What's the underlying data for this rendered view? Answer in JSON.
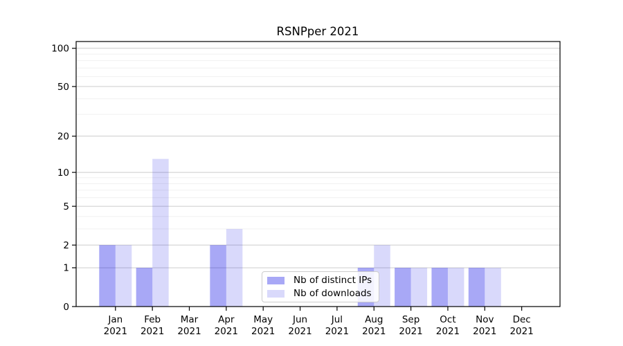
{
  "chart_data": {
    "type": "bar",
    "title": "RSNPper 2021",
    "categories": [
      "Jan 2021",
      "Feb 2021",
      "Mar 2021",
      "Apr 2021",
      "May 2021",
      "Jun 2021",
      "Jul 2021",
      "Aug 2021",
      "Sep 2021",
      "Oct 2021",
      "Nov 2021",
      "Dec 2021"
    ],
    "series": [
      {
        "name": "Nb of distinct IPs",
        "color": "rgba(0,0,230,0.34)",
        "values": [
          2,
          1,
          0,
          2,
          0,
          0,
          0,
          1,
          1,
          1,
          1,
          0
        ]
      },
      {
        "name": "Nb of downloads",
        "color": "rgba(0,0,230,0.15)",
        "values": [
          2,
          13,
          0,
          3,
          0,
          0,
          0,
          2,
          1,
          1,
          1,
          0
        ]
      }
    ],
    "y_axis": {
      "scale": "log1p",
      "ticks": [
        0,
        1,
        2,
        5,
        10,
        20,
        50,
        100
      ],
      "minor_ticks": [
        3,
        4,
        6,
        7,
        8,
        9,
        30,
        40,
        60,
        70,
        80,
        90
      ],
      "range": [
        0,
        112
      ]
    },
    "x_axis": {
      "label_lines": 2
    },
    "grid": {
      "horizontal": true,
      "major_color": "#cccccc",
      "minor_color": "#f0f0f0"
    },
    "axis_color": "#000000",
    "background": "#ffffff",
    "legend_position": "lower center"
  }
}
